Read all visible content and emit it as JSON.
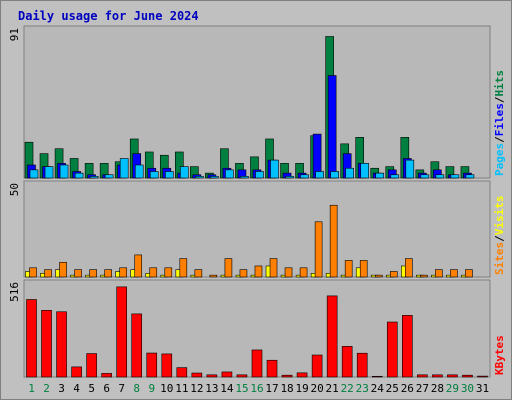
{
  "colors": {
    "background": "#c0c0c0",
    "plot_bg": "#b8b8b8",
    "title": "#0000c0",
    "hits": "#008040",
    "files": "#0000ff",
    "pages": "#00c0ff",
    "visits": "#ffff00",
    "sites": "#ff8000",
    "kbytes": "#ff0000",
    "weekend_day": "#008040",
    "weekday_day": "#000000"
  },
  "chart_data": [
    {
      "type": "bar",
      "title": "Daily usage for June 2024",
      "ymax_label": "91",
      "ylim": [
        0,
        91
      ],
      "legend": {
        "pages": "Pages",
        "files": "Files",
        "hits": "Hits",
        "sep": "/"
      },
      "categories": [
        "1",
        "2",
        "3",
        "4",
        "5",
        "6",
        "7",
        "8",
        "9",
        "10",
        "11",
        "12",
        "13",
        "14",
        "15",
        "16",
        "17",
        "18",
        "19",
        "20",
        "21",
        "22",
        "23",
        "24",
        "25",
        "26",
        "27",
        "28",
        "29",
        "30",
        "31"
      ],
      "series": [
        {
          "name": "Hits",
          "values": [
            22,
            15,
            18,
            12,
            9,
            9,
            10,
            24,
            16,
            14,
            16,
            7,
            3,
            18,
            9,
            13,
            24,
            9,
            9,
            26,
            87,
            21,
            25,
            6,
            7,
            25,
            5,
            10,
            7,
            7,
            0
          ]
        },
        {
          "name": "Files",
          "values": [
            8,
            7,
            9,
            4,
            2,
            2,
            8,
            15,
            6,
            6,
            3,
            2,
            2,
            6,
            5,
            5,
            11,
            3,
            3,
            27,
            63,
            15,
            9,
            3,
            5,
            12,
            3,
            5,
            2,
            3,
            0
          ]
        },
        {
          "name": "Pages",
          "values": [
            5,
            7,
            8,
            3,
            1,
            2,
            12,
            8,
            4,
            4,
            7,
            1,
            1,
            5,
            1,
            4,
            11,
            1,
            2,
            4,
            4,
            6,
            9,
            3,
            2,
            11,
            2,
            2,
            2,
            2,
            0
          ]
        }
      ]
    },
    {
      "type": "bar",
      "ymax_label": "50",
      "ylim": [
        0,
        50
      ],
      "legend": {
        "sites": "Sites",
        "visits": "Visits",
        "sep": "/"
      },
      "categories": [
        "1",
        "2",
        "3",
        "4",
        "5",
        "6",
        "7",
        "8",
        "9",
        "10",
        "11",
        "12",
        "13",
        "14",
        "15",
        "16",
        "17",
        "18",
        "19",
        "20",
        "21",
        "22",
        "23",
        "24",
        "25",
        "26",
        "27",
        "28",
        "29",
        "30",
        "31"
      ],
      "series": [
        {
          "name": "Visits",
          "values": [
            3,
            2,
            4,
            1,
            1,
            1,
            3,
            4,
            2,
            1,
            4,
            1,
            0,
            1,
            1,
            1,
            6,
            1,
            1,
            2,
            2,
            1,
            5,
            1,
            1,
            6,
            1,
            1,
            1,
            1,
            0
          ]
        },
        {
          "name": "Sites",
          "values": [
            5,
            4,
            8,
            4,
            4,
            4,
            5,
            12,
            5,
            5,
            10,
            4,
            1,
            10,
            4,
            6,
            10,
            5,
            5,
            30,
            39,
            9,
            9,
            1,
            3,
            10,
            1,
            4,
            4,
            4,
            0
          ]
        }
      ]
    },
    {
      "type": "bar",
      "ymax_label": "516",
      "ylim": [
        0,
        516
      ],
      "legend": {
        "kbytes": "KBytes"
      },
      "categories": [
        "1",
        "2",
        "3",
        "4",
        "5",
        "6",
        "7",
        "8",
        "9",
        "10",
        "11",
        "12",
        "13",
        "14",
        "15",
        "16",
        "17",
        "18",
        "19",
        "20",
        "21",
        "22",
        "23",
        "24",
        "25",
        "26",
        "27",
        "28",
        "29",
        "30",
        "31"
      ],
      "series": [
        {
          "name": "KBytes",
          "values": [
            430,
            370,
            362,
            56,
            130,
            20,
            500,
            350,
            133,
            128,
            52,
            22,
            12,
            28,
            12,
            150,
            93,
            10,
            23,
            122,
            450,
            170,
            132,
            4,
            305,
            342,
            12,
            12,
            12,
            10,
            5
          ]
        }
      ]
    }
  ],
  "days": {
    "labels": [
      "1",
      "2",
      "3",
      "4",
      "5",
      "6",
      "7",
      "8",
      "9",
      "10",
      "11",
      "12",
      "13",
      "14",
      "15",
      "16",
      "17",
      "18",
      "19",
      "20",
      "21",
      "22",
      "23",
      "24",
      "25",
      "26",
      "27",
      "28",
      "29",
      "30",
      "31"
    ],
    "weekend": [
      true,
      true,
      false,
      false,
      false,
      false,
      false,
      true,
      true,
      false,
      false,
      false,
      false,
      false,
      true,
      true,
      false,
      false,
      false,
      false,
      false,
      true,
      true,
      false,
      false,
      false,
      false,
      false,
      true,
      true,
      false
    ]
  }
}
